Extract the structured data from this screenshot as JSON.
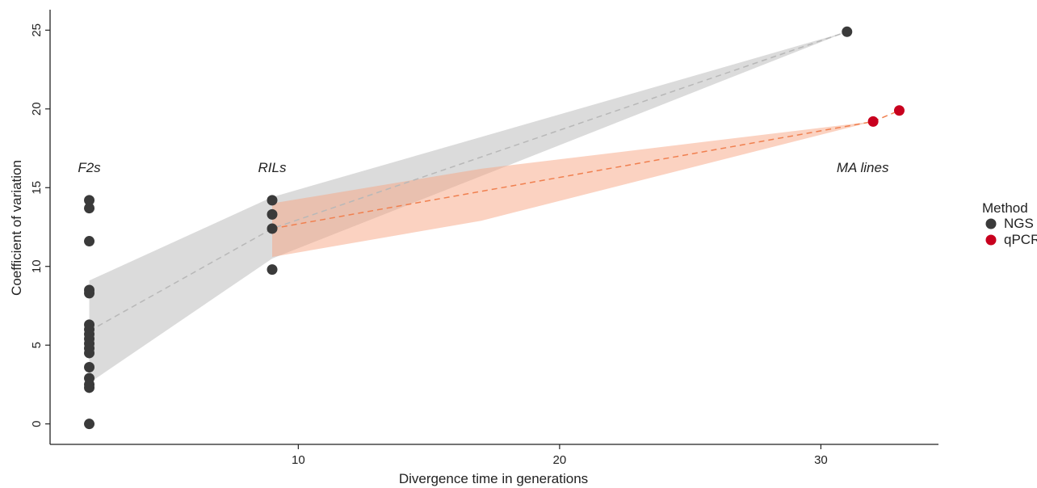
{
  "chart_data": {
    "type": "scatter",
    "xlabel": "Divergence time in generations",
    "ylabel": "Coefficient of variation",
    "xlim": [
      0.5,
      34.5
    ],
    "ylim": [
      -1.3,
      26.3
    ],
    "xticks": [
      10,
      20,
      30
    ],
    "yticks": [
      0,
      5,
      10,
      15,
      20,
      25
    ],
    "grid": false,
    "legend": {
      "title": "Method",
      "placement": "right",
      "entries": [
        {
          "label": "NGS",
          "color": "#3a3a3a"
        },
        {
          "label": "qPCR",
          "color": "#c8001e"
        }
      ]
    },
    "annotations": [
      {
        "text": "F2s",
        "x": 2,
        "y": 16
      },
      {
        "text": "RILs",
        "x": 9,
        "y": 16
      },
      {
        "text": "MA lines",
        "x": 31.6,
        "y": 16
      }
    ],
    "series": [
      {
        "name": "NGS",
        "color": "#3a3a3a",
        "points": [
          [
            2,
            14.2
          ],
          [
            2,
            13.7
          ],
          [
            2,
            11.6
          ],
          [
            2,
            8.5
          ],
          [
            2,
            8.3
          ],
          [
            2,
            6.3
          ],
          [
            2,
            6.0
          ],
          [
            2,
            5.7
          ],
          [
            2,
            5.4
          ],
          [
            2,
            5.1
          ],
          [
            2,
            4.8
          ],
          [
            2,
            4.5
          ],
          [
            2,
            3.6
          ],
          [
            2,
            2.9
          ],
          [
            2,
            2.5
          ],
          [
            2,
            2.3
          ],
          [
            2,
            0.0
          ],
          [
            9,
            14.2
          ],
          [
            9,
            13.3
          ],
          [
            9,
            12.4
          ],
          [
            9,
            9.8
          ],
          [
            31,
            24.9
          ]
        ],
        "fit": [
          [
            2,
            5.9
          ],
          [
            9,
            12.4
          ],
          [
            31,
            24.9
          ]
        ],
        "ribbon": {
          "x": [
            2,
            9,
            31
          ],
          "upper": [
            9.1,
            14.4,
            24.9
          ],
          "lower": [
            2.6,
            10.5,
            24.9
          ]
        },
        "fit_color": "#b8b8b8",
        "ribbon_color": "#b8b8b8"
      },
      {
        "name": "qPCR",
        "color": "#c8001e",
        "points": [
          [
            32,
            19.2
          ],
          [
            33,
            19.9
          ]
        ],
        "fit": [
          [
            9,
            12.4
          ],
          [
            32,
            19.2
          ],
          [
            33,
            19.9
          ]
        ],
        "ribbon": {
          "x": [
            9,
            17,
            32,
            33
          ],
          "upper": [
            14.0,
            16.2,
            19.2,
            19.9
          ],
          "lower": [
            10.6,
            12.9,
            19.2,
            19.9
          ]
        },
        "fit_color": "#f08050",
        "ribbon_color": "#f7a583"
      }
    ]
  }
}
